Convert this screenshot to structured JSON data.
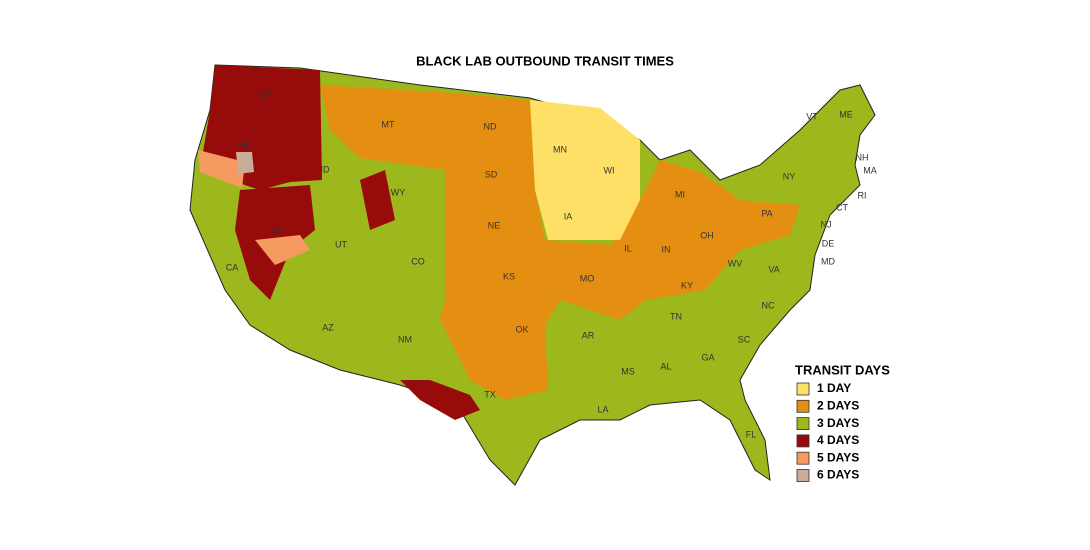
{
  "title": "BLACK LAB OUTBOUND TRANSIT TIMES",
  "legend": {
    "title": "TRANSIT DAYS",
    "items": [
      {
        "label": "1 DAY",
        "color": "#ffe066"
      },
      {
        "label": "2 DAYS",
        "color": "#e58f12"
      },
      {
        "label": "3 DAYS",
        "color": "#9cb81c"
      },
      {
        "label": "4 DAYS",
        "color": "#980b0b"
      },
      {
        "label": "5 DAYS",
        "color": "#f59a60"
      },
      {
        "label": "6 DAYS",
        "color": "#c9ad98"
      }
    ]
  },
  "state_labels": [
    "WA",
    "OR",
    "CA",
    "NV",
    "ID",
    "MT",
    "WY",
    "UT",
    "CO",
    "AZ",
    "NM",
    "ND",
    "SD",
    "NE",
    "KS",
    "OK",
    "TX",
    "MN",
    "IA",
    "MO",
    "AR",
    "LA",
    "WI",
    "IL",
    "MI",
    "IN",
    "OH",
    "KY",
    "TN",
    "MS",
    "AL",
    "GA",
    "FL",
    "SC",
    "NC",
    "VA",
    "WV",
    "PA",
    "NY",
    "VT",
    "ME",
    "NH",
    "MA",
    "RI",
    "CT",
    "NJ",
    "DE",
    "MD"
  ]
}
